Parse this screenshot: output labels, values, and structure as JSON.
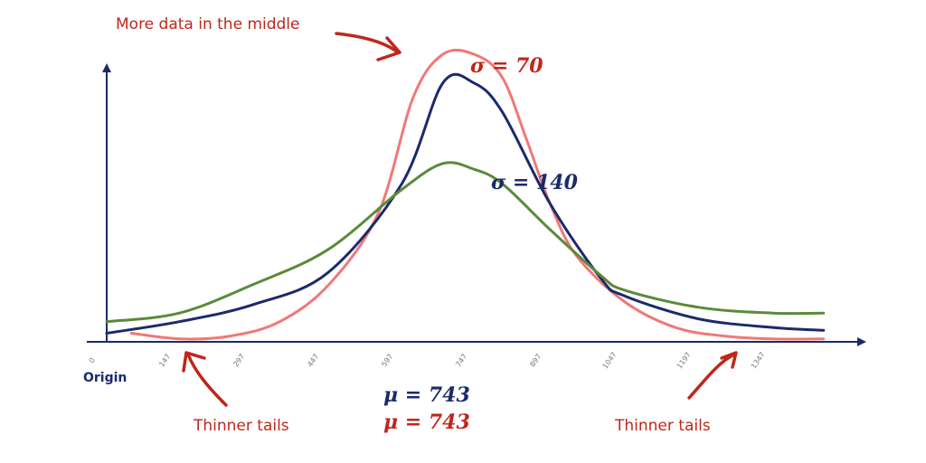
{
  "chart_data": {
    "type": "line",
    "x_ticks": [
      0,
      147,
      297,
      447,
      597,
      747,
      897,
      1047,
      1197,
      1347
    ],
    "xlim": [
      0,
      1500
    ],
    "ylim": [
      0,
      1
    ],
    "grid": false,
    "origin_label": "Origin",
    "series": [
      {
        "color": "#f07878",
        "points": [
          [
            50,
            0.03
          ],
          [
            150,
            0.01
          ],
          [
            250,
            0.02
          ],
          [
            350,
            0.07
          ],
          [
            450,
            0.2
          ],
          [
            550,
            0.45
          ],
          [
            620,
            0.85
          ],
          [
            680,
            1.0
          ],
          [
            743,
            1.0
          ],
          [
            800,
            0.92
          ],
          [
            850,
            0.7
          ],
          [
            897,
            0.48
          ],
          [
            950,
            0.3
          ],
          [
            1047,
            0.14
          ],
          [
            1150,
            0.05
          ],
          [
            1250,
            0.02
          ],
          [
            1347,
            0.01
          ],
          [
            1450,
            0.01
          ]
        ]
      },
      {
        "color": "#1b2a6b",
        "points": [
          [
            0,
            0.03
          ],
          [
            147,
            0.07
          ],
          [
            297,
            0.13
          ],
          [
            447,
            0.24
          ],
          [
            597,
            0.55
          ],
          [
            680,
            0.9
          ],
          [
            743,
            0.9
          ],
          [
            800,
            0.8
          ],
          [
            897,
            0.48
          ],
          [
            1000,
            0.22
          ],
          [
            1047,
            0.16
          ],
          [
            1197,
            0.08
          ],
          [
            1347,
            0.05
          ],
          [
            1450,
            0.04
          ]
        ]
      },
      {
        "color": "#5b8a3a",
        "points": [
          [
            0,
            0.07
          ],
          [
            147,
            0.1
          ],
          [
            297,
            0.2
          ],
          [
            447,
            0.32
          ],
          [
            597,
            0.53
          ],
          [
            680,
            0.62
          ],
          [
            743,
            0.6
          ],
          [
            800,
            0.55
          ],
          [
            897,
            0.39
          ],
          [
            1000,
            0.23
          ],
          [
            1047,
            0.18
          ],
          [
            1197,
            0.12
          ],
          [
            1347,
            0.1
          ],
          [
            1450,
            0.1
          ]
        ]
      }
    ]
  },
  "annotations": {
    "top_note": "More data in the middle",
    "sigma_70": "σ = 70",
    "sigma_140": "σ = 140",
    "mu_blue": "μ = 743",
    "mu_red": "μ = 743",
    "tail_left": "Thinner tails",
    "tail_right": "Thinner tails"
  },
  "colors": {
    "axis": "#1b2a6b",
    "note_red": "#c0261a",
    "sigma_red": "#c0261a",
    "sigma_blue": "#1b2a6b"
  }
}
